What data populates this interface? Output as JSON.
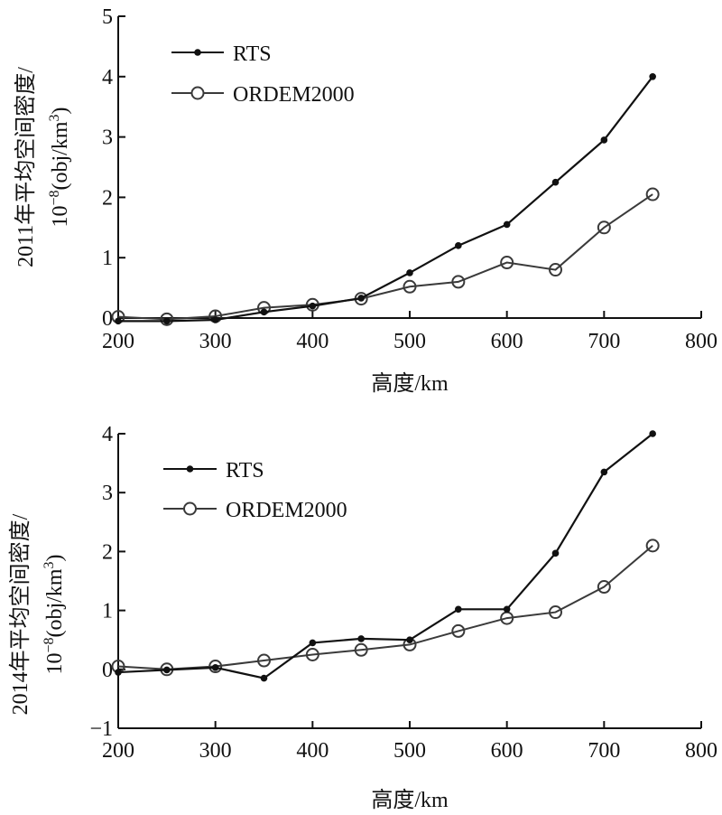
{
  "chart_data": [
    {
      "type": "line",
      "id": "chart-2011",
      "title": "",
      "xlabel": "高度/km",
      "ylabel_line1": "2011年平均空间密度/",
      "ylabel_line2_base": "10",
      "ylabel_line2_exp": "−8",
      "ylabel_line2_unit": "(obj/km",
      "ylabel_line2_unit_exp": "3",
      "ylabel_line2_close": ")",
      "xlim": [
        200,
        800
      ],
      "ylim": [
        0,
        5
      ],
      "xticks": [
        200,
        300,
        400,
        500,
        600,
        700,
        800
      ],
      "yticks": [
        0,
        1,
        2,
        3,
        4,
        5
      ],
      "legend_position": "top-left",
      "x": [
        200,
        250,
        300,
        350,
        400,
        450,
        500,
        550,
        600,
        650,
        700,
        750
      ],
      "series": [
        {
          "name": "RTS",
          "marker": "filled-circle",
          "color": "#111111",
          "values": [
            -0.05,
            -0.05,
            -0.03,
            0.1,
            0.2,
            0.33,
            0.75,
            1.2,
            1.55,
            2.25,
            2.95,
            4.0
          ]
        },
        {
          "name": "ORDEM2000",
          "marker": "open-circle",
          "color": "#3a3a3a",
          "values": [
            0.02,
            -0.02,
            0.03,
            0.17,
            0.22,
            0.32,
            0.52,
            0.6,
            0.92,
            0.8,
            1.5,
            2.05
          ]
        }
      ]
    },
    {
      "type": "line",
      "id": "chart-2014",
      "title": "",
      "xlabel": "高度/km",
      "ylabel_line1": "2014年平均空间密度/",
      "ylabel_line2_base": "10",
      "ylabel_line2_exp": "−8",
      "ylabel_line2_unit": "(obj/km",
      "ylabel_line2_unit_exp": "3",
      "ylabel_line2_close": ")",
      "xlim": [
        200,
        800
      ],
      "ylim": [
        -1,
        4
      ],
      "xticks": [
        200,
        300,
        400,
        500,
        600,
        700,
        800
      ],
      "yticks": [
        -1,
        0,
        1,
        2,
        3,
        4
      ],
      "legend_position": "top-left",
      "x": [
        200,
        250,
        300,
        350,
        400,
        450,
        500,
        550,
        600,
        650,
        700,
        750
      ],
      "series": [
        {
          "name": "RTS",
          "marker": "filled-circle",
          "color": "#111111",
          "values": [
            -0.05,
            -0.01,
            0.03,
            -0.15,
            0.45,
            0.52,
            0.5,
            1.02,
            1.02,
            1.97,
            3.35,
            4.0
          ]
        },
        {
          "name": "ORDEM2000",
          "marker": "open-circle",
          "color": "#3a3a3a",
          "values": [
            0.05,
            0.0,
            0.05,
            0.15,
            0.25,
            0.33,
            0.42,
            0.65,
            0.87,
            0.97,
            1.4,
            2.1
          ]
        }
      ]
    }
  ]
}
